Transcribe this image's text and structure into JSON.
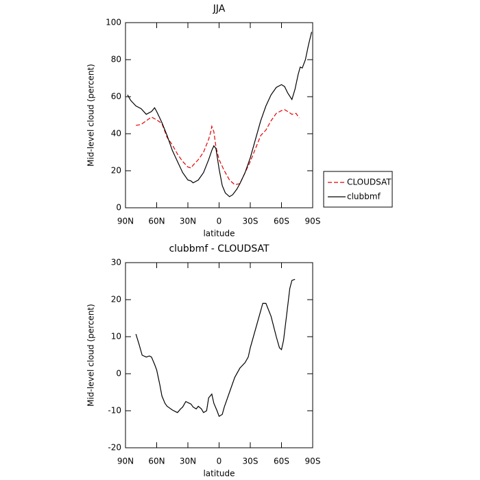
{
  "chart_data": [
    {
      "type": "line",
      "title": "JJA",
      "x_label": "latitude",
      "y_label": "Mid-level cloud (percent)",
      "xlim": [
        90,
        -90
      ],
      "xticks": [
        {
          "value": 90,
          "label": "90N"
        },
        {
          "value": 60,
          "label": "60N"
        },
        {
          "value": 30,
          "label": "30N"
        },
        0,
        {
          "value": -30,
          "label": "30S"
        },
        {
          "value": -60,
          "label": "60S"
        },
        {
          "value": -90,
          "label": "90S"
        }
      ],
      "ylim": [
        0,
        100
      ],
      "yticks": [
        0,
        20,
        40,
        60,
        80,
        100
      ],
      "legend": "right",
      "series": [
        {
          "name": "CLOUDSAT",
          "color": "#e00000",
          "style": "dashed",
          "x": [
            80,
            75,
            70,
            65,
            60,
            55,
            50,
            45,
            40,
            35,
            30,
            27,
            25,
            20,
            15,
            10,
            8,
            7,
            5,
            3,
            0,
            -5,
            -10,
            -15,
            -20,
            -25,
            -30,
            -35,
            -40,
            -45,
            -50,
            -55,
            -60,
            -63,
            -66,
            -70,
            -74,
            -77
          ],
          "values": [
            44.5,
            45,
            47,
            49,
            47.5,
            45.5,
            38,
            34,
            29,
            25,
            22,
            21.5,
            23,
            26,
            30,
            37,
            41,
            44,
            41,
            33,
            26,
            20,
            15,
            12.5,
            13,
            19,
            25,
            32,
            39,
            42,
            47,
            51,
            52.5,
            53,
            52,
            50.5,
            51,
            48.5
          ]
        },
        {
          "name": "clubbmf",
          "color": "#000000",
          "style": "solid",
          "x": [
            88,
            85,
            80,
            75,
            70,
            65,
            62,
            60,
            55,
            50,
            45,
            40,
            35,
            30,
            27,
            25,
            20,
            15,
            10,
            7,
            5,
            3,
            0,
            -3,
            -6,
            -10,
            -13,
            -17,
            -20,
            -25,
            -30,
            -35,
            -40,
            -45,
            -50,
            -55,
            -60,
            -63,
            -66,
            -70,
            -73,
            -76,
            -78,
            -80,
            -83,
            -86,
            -89
          ],
          "values": [
            61,
            58,
            55,
            53.5,
            50.5,
            52,
            54,
            52,
            46,
            39,
            31,
            25,
            19,
            15,
            14.5,
            13.5,
            15,
            19,
            26,
            31,
            33.5,
            32,
            21,
            12,
            8,
            6,
            7,
            10,
            13,
            19,
            27,
            37,
            47,
            55,
            61,
            65,
            66.5,
            65.5,
            62,
            58.5,
            64,
            72,
            76,
            75.5,
            80,
            88,
            95
          ]
        }
      ]
    },
    {
      "type": "line",
      "title": "clubbmf - CLOUDSAT",
      "x_label": "latitude",
      "y_label": "Mid-level cloud (percent)",
      "xlim": [
        90,
        -90
      ],
      "xticks": [
        {
          "value": 90,
          "label": "90N"
        },
        {
          "value": 60,
          "label": "60N"
        },
        {
          "value": 30,
          "label": "30N"
        },
        0,
        {
          "value": -30,
          "label": "30S"
        },
        {
          "value": -60,
          "label": "60S"
        },
        {
          "value": -90,
          "label": "90S"
        }
      ],
      "ylim": [
        -20,
        30
      ],
      "yticks": [
        -20,
        -10,
        0,
        10,
        20,
        30
      ],
      "series": [
        {
          "color": "#000000",
          "style": "solid",
          "x": [
            80,
            77,
            74,
            70,
            67,
            65,
            62,
            60,
            57,
            55,
            52,
            50,
            45,
            40,
            37,
            35,
            32,
            30,
            27,
            25,
            22,
            20,
            17,
            15,
            12,
            10,
            7,
            5,
            2,
            0,
            -3,
            -5,
            -10,
            -15,
            -20,
            -25,
            -28,
            -30,
            -35,
            -40,
            -42,
            -45,
            -50,
            -55,
            -58,
            -60,
            -62,
            -65,
            -68,
            -70,
            -73
          ],
          "values": [
            10.7,
            8,
            5,
            4.5,
            4.8,
            4.5,
            2.5,
            1,
            -3,
            -6,
            -8,
            -8.8,
            -9.8,
            -10.5,
            -9.5,
            -9,
            -7.5,
            -7.8,
            -8.2,
            -9,
            -9.5,
            -8.8,
            -9.5,
            -10.5,
            -10,
            -6.5,
            -5.5,
            -8,
            -10,
            -11.5,
            -11,
            -9,
            -5,
            -1,
            1.5,
            3,
            4.5,
            7,
            12,
            17,
            19,
            19,
            15.5,
            10,
            7,
            6.5,
            9,
            16,
            23,
            25.2,
            25.5
          ]
        }
      ]
    }
  ]
}
